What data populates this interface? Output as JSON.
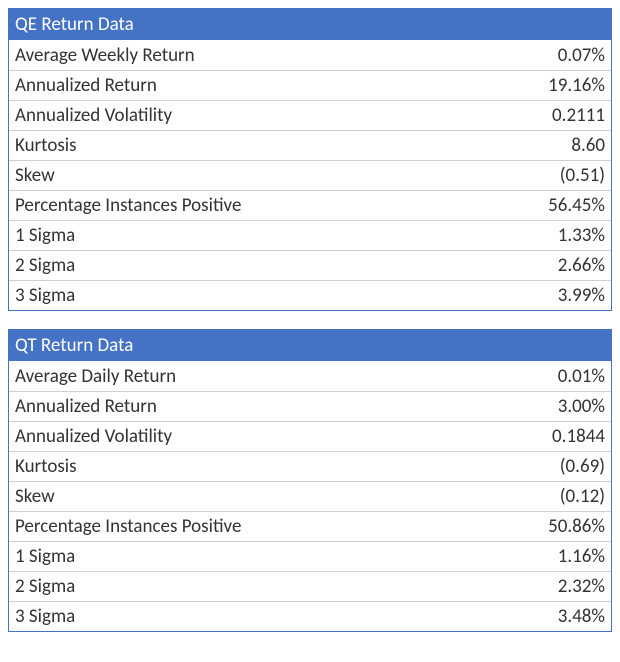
{
  "tables": [
    {
      "title": "QE Return Data",
      "header_bg": "#4472c4",
      "header_color": "#ffffff",
      "border_color": "#4472c4",
      "row_border_color": "#d0d0d0",
      "text_color": "#333333",
      "fontsize": 19,
      "rows": [
        {
          "label": "Average Weekly Return",
          "value": "0.07%"
        },
        {
          "label": "Annualized Return",
          "value": "19.16%"
        },
        {
          "label": "Annualized Volatility",
          "value": "0.2111"
        },
        {
          "label": "Kurtosis",
          "value": "8.60"
        },
        {
          "label": "Skew",
          "value": "(0.51)"
        },
        {
          "label": "Percentage Instances Positive",
          "value": "56.45%"
        },
        {
          "label": "1 Sigma",
          "value": "1.33%"
        },
        {
          "label": "2 Sigma",
          "value": "2.66%"
        },
        {
          "label": "3 Sigma",
          "value": "3.99%"
        }
      ]
    },
    {
      "title": "QT Return Data",
      "header_bg": "#4472c4",
      "header_color": "#ffffff",
      "border_color": "#4472c4",
      "row_border_color": "#d0d0d0",
      "text_color": "#333333",
      "fontsize": 19,
      "rows": [
        {
          "label": "Average Daily Return",
          "value": "0.01%"
        },
        {
          "label": "Annualized Return",
          "value": "3.00%"
        },
        {
          "label": "Annualized Volatility",
          "value": "0.1844"
        },
        {
          "label": "Kurtosis",
          "value": "(0.69)"
        },
        {
          "label": "Skew",
          "value": "(0.12)"
        },
        {
          "label": "Percentage Instances Positive",
          "value": "50.86%"
        },
        {
          "label": "1 Sigma",
          "value": "1.16%"
        },
        {
          "label": "2 Sigma",
          "value": "2.32%"
        },
        {
          "label": "3 Sigma",
          "value": "3.48%"
        }
      ]
    }
  ]
}
